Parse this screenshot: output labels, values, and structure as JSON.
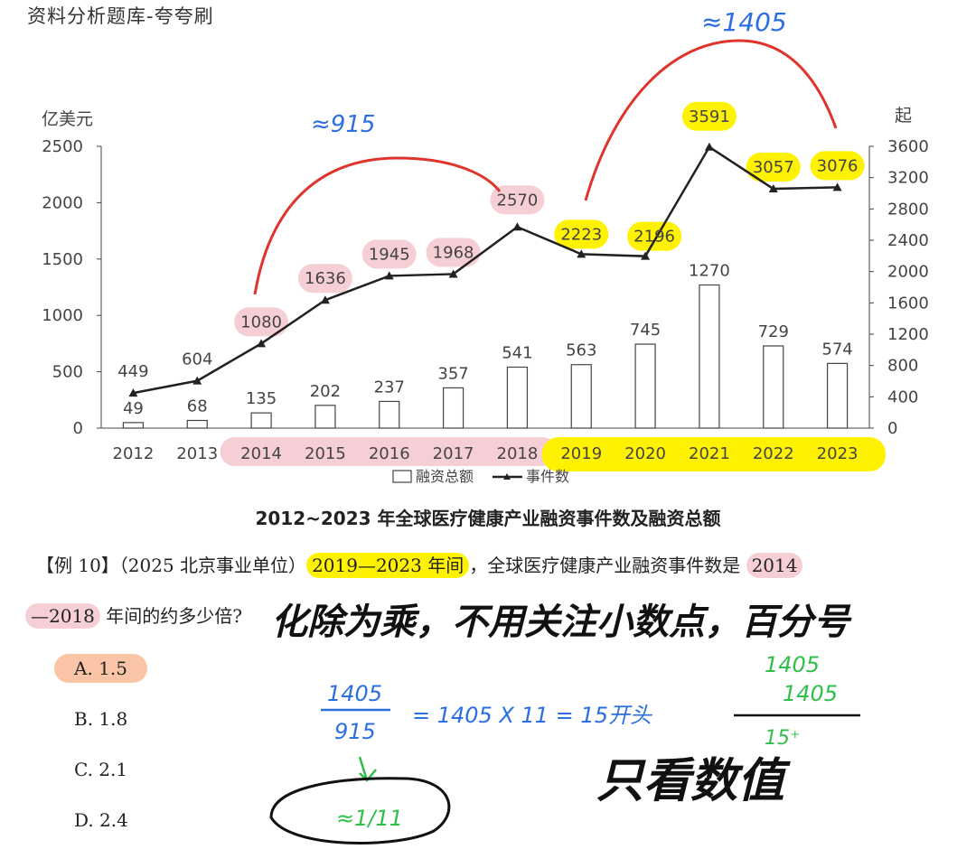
{
  "header": {
    "title": "资料分析题库-夸夸刷"
  },
  "chart_data": {
    "type": "bar+line",
    "categories": [
      "2012",
      "2013",
      "2014",
      "2015",
      "2016",
      "2017",
      "2018",
      "2019",
      "2020",
      "2021",
      "2022",
      "2023"
    ],
    "bar_series": {
      "name": "融资总额",
      "values": [
        49,
        68,
        135,
        202,
        237,
        357,
        541,
        563,
        745,
        1270,
        729,
        574
      ],
      "axis": "left"
    },
    "line_series": {
      "name": "事件数",
      "values": [
        449,
        604,
        1080,
        1636,
        1945,
        1968,
        2570,
        2223,
        2196,
        3591,
        3057,
        3076
      ],
      "axis": "right"
    },
    "left_axis": {
      "label": "亿美元",
      "ticks": [
        "0",
        "500",
        "1000",
        "1500",
        "2000",
        "2500"
      ],
      "range": [
        0,
        2500
      ]
    },
    "right_axis": {
      "label": "起",
      "ticks": [
        "0",
        "400",
        "800",
        "1200",
        "1600",
        "2000",
        "2400",
        "2800",
        "3200",
        "3600"
      ],
      "range": [
        0,
        3600
      ]
    },
    "title": "2012~2023 年全球医疗健康产业融资事件数及融资总额",
    "legend": [
      "融资总额",
      "事件数"
    ]
  },
  "question": {
    "prefix": "【例 10】（2025 北京事业单位）",
    "period_a": "2019—2023 年间",
    "middle": "，全球医疗健康产业融资事件数是 ",
    "period_b_part1": "2014",
    "period_b_part2": "—2018",
    "suffix": " 年间的约多少倍?"
  },
  "options": [
    {
      "label": "A. 1.5",
      "selected": true
    },
    {
      "label": "B. 1.8",
      "selected": false
    },
    {
      "label": "C. 2.1",
      "selected": false
    },
    {
      "label": "D. 2.4",
      "selected": false
    }
  ],
  "annotations": {
    "sum_a": "≈915",
    "sum_b": "≈1405",
    "handwritten_tip": "化除为乘，不用关注小数点，百分号",
    "fraction_num": "1405",
    "fraction_den": "915",
    "equation": "= 1405 X 11 = 15开头",
    "approx": "≈1/11",
    "calc_line1": "1405",
    "calc_line2": "1405",
    "calc_result": "15⁺",
    "only_digits": "只看数值"
  },
  "colors": {
    "yellow_highlight": "#fff200",
    "pink_highlight": "#f6cfd6",
    "red_ink": "#e0332c",
    "blue_ink": "#2b6fe0",
    "green_ink": "#2fbf4a",
    "selected_option": "#f9c5a6"
  }
}
